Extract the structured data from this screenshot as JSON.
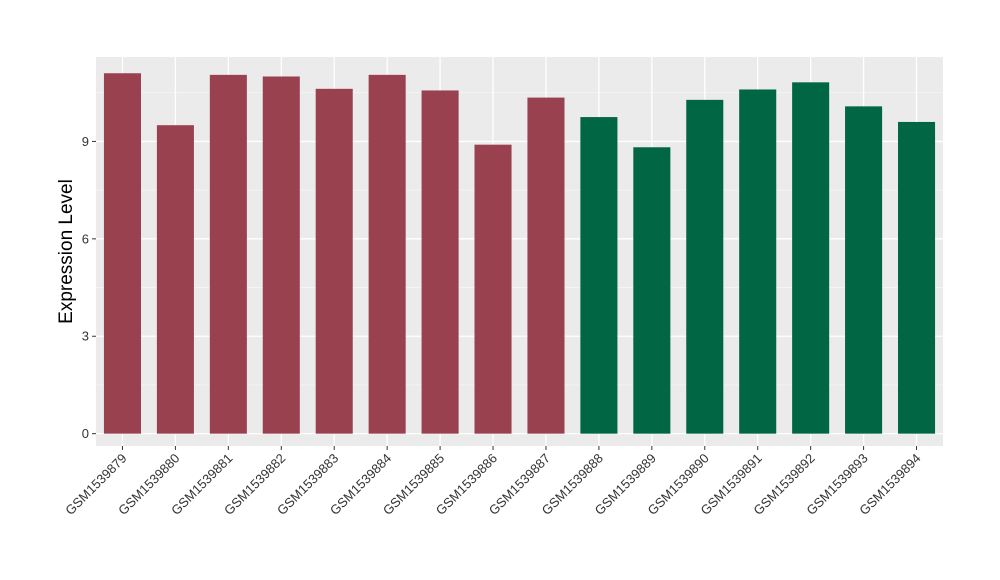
{
  "chart_data": {
    "type": "bar",
    "title": "",
    "xlabel": "",
    "ylabel": "Expression Level",
    "ylim": [
      -0.38,
      11.6
    ],
    "yticks": [
      0,
      3,
      6,
      9
    ],
    "grid": true,
    "legend": "none",
    "categories": [
      "GSM1539879",
      "GSM1539880",
      "GSM1539881",
      "GSM1539882",
      "GSM1539883",
      "GSM1539884",
      "GSM1539885",
      "GSM1539886",
      "GSM1539887",
      "GSM1539888",
      "GSM1539889",
      "GSM1539890",
      "GSM1539891",
      "GSM1539892",
      "GSM1539893",
      "GSM1539894"
    ],
    "values": [
      11.1,
      9.5,
      11.05,
      11.0,
      10.62,
      11.05,
      10.57,
      8.9,
      10.35,
      9.75,
      8.82,
      10.28,
      10.6,
      10.82,
      10.08,
      9.6
    ],
    "bar_groups": [
      0,
      0,
      0,
      0,
      0,
      0,
      0,
      0,
      0,
      1,
      1,
      1,
      1,
      1,
      1,
      1
    ],
    "colors": {
      "groups": [
        "#9a4150",
        "#006644"
      ],
      "panel_background": "#ebebeb",
      "grid_major": "#ffffff",
      "grid_minor": "#f5f5f5",
      "tick": "#333333"
    }
  }
}
